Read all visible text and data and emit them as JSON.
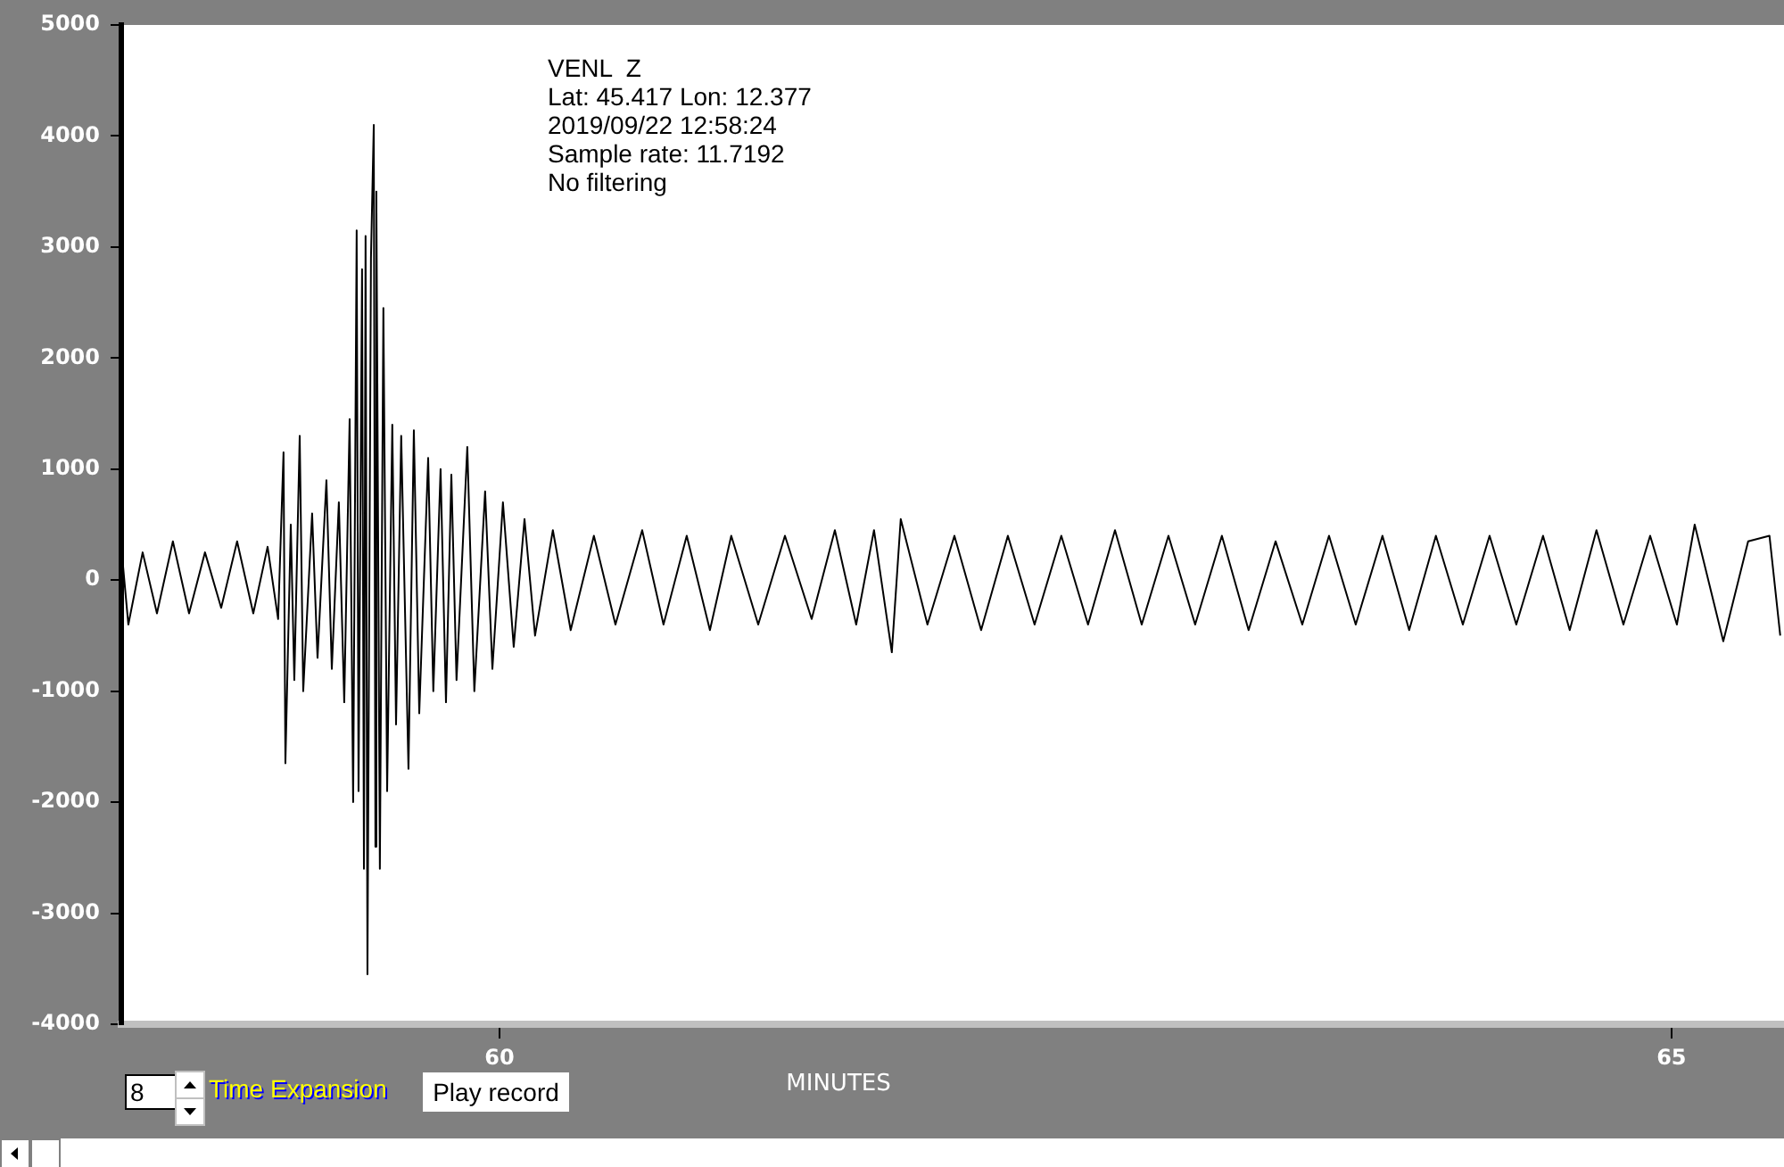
{
  "chart_data": {
    "type": "line",
    "xlabel": "MINUTES",
    "annotations": [
      "VENL  Z",
      "Lat: 45.417 Lon: 12.377",
      "2019/09/22 12:58:24",
      "Sample rate: 11.7192",
      "No filtering",
      "8",
      "Time Expansion",
      "Play record"
    ],
    "color": "#000000",
    "grid": false,
    "xlim": [
      58.387,
      65.48
    ],
    "xticks": [
      60,
      65
    ],
    "ylim": [
      -4000,
      5000
    ],
    "yticks": [
      -4000,
      -3000,
      -2000,
      -1000,
      0,
      1000,
      2000,
      3000,
      4000,
      5000
    ],
    "x": [
      58.387,
      58.417,
      58.478,
      58.539,
      58.607,
      58.676,
      58.744,
      58.813,
      58.881,
      58.95,
      59.011,
      59.056,
      59.079,
      59.087,
      59.11,
      59.125,
      59.148,
      59.163,
      59.201,
      59.224,
      59.262,
      59.285,
      59.315,
      59.338,
      59.361,
      59.376,
      59.391,
      59.399,
      59.414,
      59.422,
      59.429,
      59.437,
      59.452,
      59.464,
      59.471,
      59.475,
      59.49,
      59.505,
      59.521,
      59.543,
      59.559,
      59.581,
      59.612,
      59.635,
      59.658,
      59.696,
      59.718,
      59.749,
      59.772,
      59.795,
      59.817,
      59.863,
      59.893,
      59.939,
      59.97,
      60.015,
      60.061,
      60.107,
      60.152,
      60.228,
      60.304,
      60.403,
      60.495,
      60.609,
      60.7,
      60.799,
      60.898,
      60.989,
      61.104,
      61.218,
      61.332,
      61.431,
      61.522,
      61.598,
      61.674,
      61.712,
      61.826,
      61.941,
      62.055,
      62.169,
      62.283,
      62.397,
      62.511,
      62.626,
      62.74,
      62.854,
      62.968,
      63.082,
      63.196,
      63.311,
      63.425,
      63.539,
      63.653,
      63.767,
      63.881,
      63.995,
      64.11,
      64.224,
      64.338,
      64.452,
      64.566,
      64.68,
      64.795,
      64.909,
      65.023,
      65.099,
      65.221,
      65.327,
      65.418,
      65.464
    ],
    "values": [
      300,
      -400,
      250,
      -300,
      350,
      -300,
      250,
      -250,
      350,
      -300,
      300,
      -350,
      1150,
      -1650,
      500,
      -900,
      1300,
      -1000,
      600,
      -700,
      900,
      -800,
      700,
      -1100,
      1450,
      -2000,
      3150,
      -1900,
      2800,
      -2600,
      3100,
      -3550,
      2900,
      4100,
      -2400,
      3500,
      -2600,
      2450,
      -1900,
      1400,
      -1300,
      1300,
      -1700,
      1350,
      -1200,
      1100,
      -1000,
      1000,
      -1100,
      950,
      -900,
      1200,
      -1000,
      800,
      -800,
      700,
      -600,
      550,
      -500,
      450,
      -450,
      400,
      -400,
      450,
      -400,
      400,
      -450,
      400,
      -400,
      400,
      -350,
      450,
      -400,
      450,
      -650,
      550,
      -400,
      400,
      -450,
      400,
      -400,
      400,
      -400,
      450,
      -400,
      400,
      -400,
      400,
      -450,
      350,
      -400,
      400,
      -400,
      400,
      -450,
      400,
      -400,
      400,
      -400,
      400,
      -450,
      450,
      -400,
      400,
      -400,
      500,
      -550,
      350,
      400,
      -500
    ]
  }
}
